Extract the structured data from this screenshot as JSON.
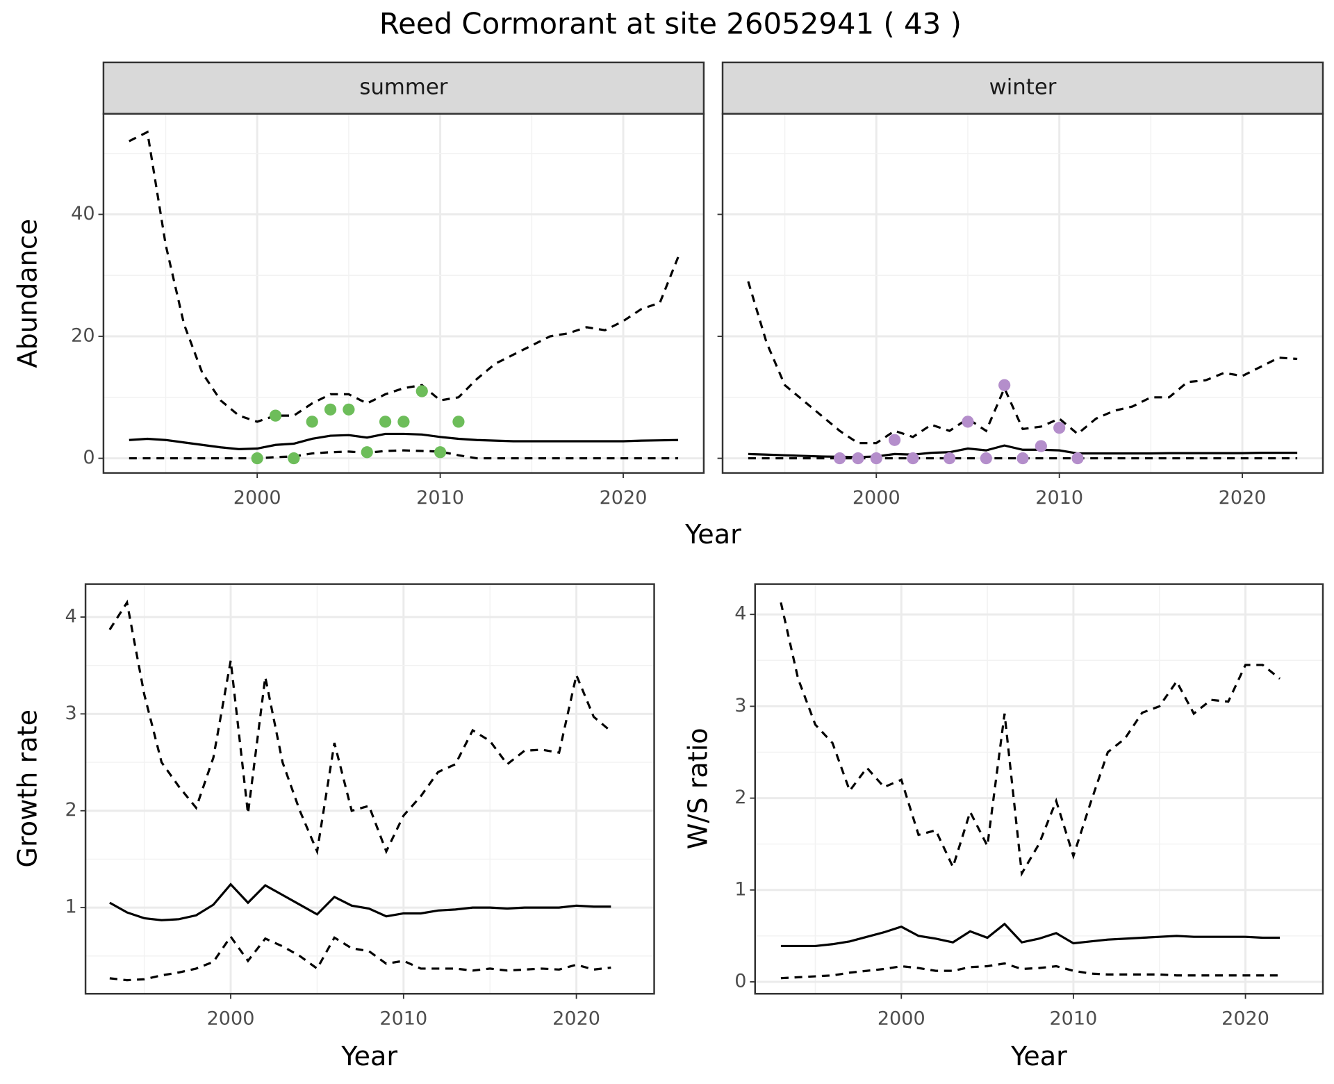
{
  "chart_data": [
    {
      "type": "line",
      "title": "Reed Cormorant at site 26052941 ( 43 )",
      "x_label": "Year",
      "y_label": "Abundance",
      "xlim": [
        1991.6,
        2024.4
      ],
      "ylim": [
        -2.4,
        56.5
      ],
      "xticks": [
        2000,
        2010,
        2020
      ],
      "yticks": [
        0,
        20,
        40
      ],
      "grid": true,
      "facets": [
        {
          "strip": "summer",
          "x": [
            1993,
            1994,
            1995,
            1996,
            1997,
            1998,
            1999,
            2000,
            2001,
            2002,
            2003,
            2004,
            2005,
            2006,
            2007,
            2008,
            2009,
            2010,
            2011,
            2012,
            2013,
            2014,
            2015,
            2016,
            2017,
            2018,
            2019,
            2020,
            2021,
            2022,
            2023
          ],
          "series": [
            {
              "line": "dashed",
              "color": "#000000",
              "values": [
                52,
                53.5,
                35,
                22,
                14,
                9.5,
                7,
                6,
                7,
                7,
                9,
                10.5,
                10.5,
                9,
                10.5,
                11.5,
                12,
                9.5,
                10,
                13,
                15.5,
                17,
                18.5,
                20,
                20.5,
                21.5,
                21,
                22.5,
                24.5,
                25.5,
                33
              ]
            },
            {
              "line": "solid",
              "color": "#000000",
              "values": [
                3,
                3.2,
                3,
                2.6,
                2.2,
                1.8,
                1.5,
                1.6,
                2.2,
                2.4,
                3.2,
                3.7,
                3.8,
                3.4,
                4,
                4,
                3.9,
                3.5,
                3.2,
                3,
                2.9,
                2.8,
                2.8,
                2.8,
                2.8,
                2.8,
                2.8,
                2.8,
                2.9,
                2.95,
                3
              ]
            },
            {
              "line": "dashed",
              "color": "#000000",
              "values": [
                0,
                0,
                0,
                0,
                0,
                0,
                0,
                0,
                0.2,
                0.3,
                0.8,
                1,
                1.1,
                0.9,
                1.2,
                1.3,
                1.2,
                1.1,
                0.5,
                0,
                0,
                0,
                0,
                0,
                0,
                0,
                0,
                0,
                0,
                0,
                0
              ]
            }
          ],
          "points": {
            "color": "#6dbd5a",
            "x": [
              2000,
              2001,
              2002,
              2003,
              2004,
              2005,
              2006,
              2007,
              2008,
              2009,
              2010,
              2011
            ],
            "values": [
              0,
              7,
              0,
              6,
              8,
              8,
              1,
              6,
              6,
              11,
              1,
              6
            ]
          }
        },
        {
          "strip": "winter",
          "x": [
            1993,
            1994,
            1995,
            1996,
            1997,
            1998,
            1999,
            2000,
            2001,
            2002,
            2003,
            2004,
            2005,
            2006,
            2007,
            2008,
            2009,
            2010,
            2011,
            2012,
            2013,
            2014,
            2015,
            2016,
            2017,
            2018,
            2019,
            2020,
            2021,
            2022,
            2023
          ],
          "series": [
            {
              "line": "dashed",
              "color": "#000000",
              "values": [
                29,
                19,
                12,
                9.5,
                7,
                4.5,
                2.5,
                2.5,
                4.5,
                3.5,
                5.5,
                4.5,
                6.5,
                4.5,
                11.5,
                4.8,
                5.2,
                6.5,
                4,
                6.5,
                7.8,
                8.5,
                10,
                10,
                12.5,
                12.8,
                14,
                13.5,
                15,
                16.5,
                16.3
              ]
            },
            {
              "line": "solid",
              "color": "#000000",
              "values": [
                0.7,
                0.6,
                0.5,
                0.4,
                0.3,
                0.25,
                0.2,
                0.3,
                0.7,
                0.6,
                0.9,
                1,
                1.6,
                1.3,
                2.1,
                1.4,
                1.4,
                1.3,
                0.8,
                0.8,
                0.8,
                0.8,
                0.8,
                0.85,
                0.85,
                0.85,
                0.85,
                0.85,
                0.9,
                0.9,
                0.9
              ]
            },
            {
              "line": "dashed",
              "color": "#000000",
              "values": [
                0,
                0,
                0,
                0,
                0,
                0,
                0,
                0,
                0,
                0,
                0,
                0,
                0,
                0,
                0,
                0,
                0,
                0,
                0,
                0,
                0,
                0,
                0,
                0,
                0,
                0,
                0,
                0,
                0,
                0,
                0
              ]
            }
          ],
          "points": {
            "color": "#b48ecb",
            "x": [
              1998,
              1999,
              2000,
              2001,
              2002,
              2004,
              2005,
              2006,
              2007,
              2008,
              2009,
              2010,
              2011
            ],
            "values": [
              0,
              0,
              0,
              3,
              0,
              0,
              6,
              0,
              12,
              0,
              2,
              5,
              0
            ]
          }
        }
      ]
    },
    {
      "type": "line",
      "x_label": "Year",
      "y_label": "Growth rate",
      "xlim": [
        1991.6,
        2024.5
      ],
      "ylim": [
        0.11,
        4.34
      ],
      "xticks": [
        2000,
        2010,
        2020
      ],
      "yticks": [
        1,
        2,
        3,
        4
      ],
      "grid": true,
      "x": [
        1993,
        1994,
        1995,
        1996,
        1997,
        1998,
        1999,
        2000,
        2001,
        2002,
        2003,
        2004,
        2005,
        2006,
        2007,
        2008,
        2009,
        2010,
        2011,
        2012,
        2013,
        2014,
        2015,
        2016,
        2017,
        2018,
        2019,
        2020,
        2021,
        2022
      ],
      "series": [
        {
          "line": "dashed",
          "color": "#000000",
          "values": [
            3.87,
            4.15,
            3.2,
            2.5,
            2.25,
            2.03,
            2.55,
            3.55,
            1.97,
            3.38,
            2.5,
            2.0,
            1.58,
            2.7,
            2.0,
            2.05,
            1.58,
            1.95,
            2.15,
            2.4,
            2.48,
            2.83,
            2.72,
            2.48,
            2.62,
            2.63,
            2.6,
            3.4,
            2.97,
            2.82
          ]
        },
        {
          "line": "solid",
          "color": "#000000",
          "values": [
            1.05,
            0.95,
            0.89,
            0.87,
            0.88,
            0.92,
            1.03,
            1.24,
            1.05,
            1.23,
            1.13,
            1.03,
            0.93,
            1.11,
            1.02,
            0.99,
            0.91,
            0.94,
            0.94,
            0.97,
            0.98,
            1.0,
            1.0,
            0.99,
            1.0,
            1.0,
            1.0,
            1.02,
            1.01,
            1.01
          ]
        },
        {
          "line": "dashed",
          "color": "#000000",
          "values": [
            0.27,
            0.25,
            0.26,
            0.3,
            0.33,
            0.37,
            0.44,
            0.7,
            0.45,
            0.68,
            0.6,
            0.5,
            0.37,
            0.69,
            0.58,
            0.55,
            0.42,
            0.45,
            0.37,
            0.37,
            0.37,
            0.35,
            0.37,
            0.35,
            0.36,
            0.37,
            0.36,
            0.41,
            0.36,
            0.38
          ]
        }
      ]
    },
    {
      "type": "line",
      "x_label": "Year",
      "y_label": "W/S ratio",
      "xlim": [
        1991.5,
        2024.5
      ],
      "ylim": [
        -0.13,
        4.33
      ],
      "xticks": [
        2000,
        2010,
        2020
      ],
      "yticks": [
        0,
        1,
        2,
        3,
        4
      ],
      "grid": true,
      "x": [
        1993,
        1994,
        1995,
        1996,
        1997,
        1998,
        1999,
        2000,
        2001,
        2002,
        2003,
        2004,
        2005,
        2006,
        2007,
        2008,
        2009,
        2010,
        2011,
        2012,
        2013,
        2014,
        2015,
        2016,
        2017,
        2018,
        2019,
        2020,
        2021,
        2022
      ],
      "series": [
        {
          "line": "dashed",
          "color": "#000000",
          "values": [
            4.13,
            3.3,
            2.8,
            2.6,
            2.08,
            2.33,
            2.12,
            2.2,
            1.6,
            1.65,
            1.25,
            1.85,
            1.48,
            2.92,
            1.18,
            1.5,
            1.97,
            1.37,
            1.95,
            2.5,
            2.65,
            2.93,
            3.0,
            3.27,
            2.92,
            3.07,
            3.05,
            3.45,
            3.45,
            3.3
          ]
        },
        {
          "line": "solid",
          "color": "#000000",
          "values": [
            0.39,
            0.39,
            0.39,
            0.41,
            0.44,
            0.49,
            0.54,
            0.6,
            0.5,
            0.47,
            0.43,
            0.55,
            0.48,
            0.63,
            0.43,
            0.47,
            0.53,
            0.42,
            0.44,
            0.46,
            0.47,
            0.48,
            0.49,
            0.5,
            0.49,
            0.49,
            0.49,
            0.49,
            0.48,
            0.48
          ]
        },
        {
          "line": "dashed",
          "color": "#000000",
          "values": [
            0.04,
            0.05,
            0.06,
            0.07,
            0.1,
            0.12,
            0.14,
            0.17,
            0.15,
            0.12,
            0.12,
            0.16,
            0.17,
            0.2,
            0.14,
            0.15,
            0.17,
            0.12,
            0.09,
            0.08,
            0.08,
            0.08,
            0.08,
            0.07,
            0.07,
            0.07,
            0.07,
            0.07,
            0.07,
            0.07
          ]
        }
      ]
    }
  ]
}
